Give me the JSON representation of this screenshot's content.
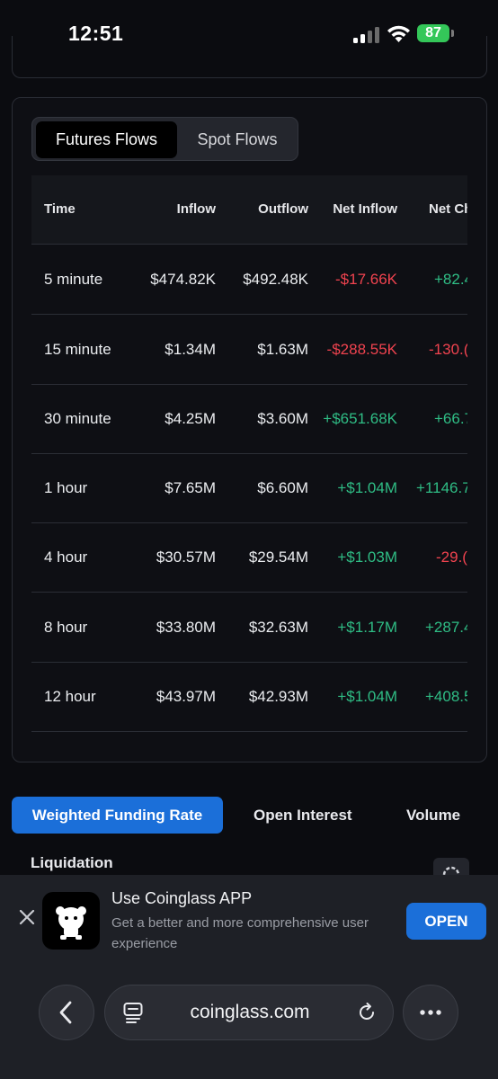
{
  "status_bar": {
    "time": "12:51",
    "battery": "87"
  },
  "flows": {
    "tabs": [
      "Futures Flows",
      "Spot Flows"
    ],
    "active_tab": "Futures Flows",
    "columns": [
      "Time",
      "Inflow",
      "Outflow",
      "Net Inflow",
      "Net Ch"
    ],
    "rows": [
      {
        "time": "5 minute",
        "inflow": "$474.82K",
        "outflow": "$492.48K",
        "net": "-$17.66K",
        "change": "+82.4"
      },
      {
        "time": "15 minute",
        "inflow": "$1.34M",
        "outflow": "$1.63M",
        "net": "-$288.55K",
        "change": "-130.("
      },
      {
        "time": "30 minute",
        "inflow": "$4.25M",
        "outflow": "$3.60M",
        "net": "+$651.68K",
        "change": "+66.7"
      },
      {
        "time": "1 hour",
        "inflow": "$7.65M",
        "outflow": "$6.60M",
        "net": "+$1.04M",
        "change": "+1146.7"
      },
      {
        "time": "4 hour",
        "inflow": "$30.57M",
        "outflow": "$29.54M",
        "net": "+$1.03M",
        "change": "-29.("
      },
      {
        "time": "8 hour",
        "inflow": "$33.80M",
        "outflow": "$32.63M",
        "net": "+$1.17M",
        "change": "+287.4"
      },
      {
        "time": "12 hour",
        "inflow": "$43.97M",
        "outflow": "$42.93M",
        "net": "+$1.04M",
        "change": "+408.5"
      }
    ]
  },
  "metric_tabs": [
    "Weighted Funding Rate",
    "Open Interest",
    "Volume"
  ],
  "liquidation_label": "Liquidation",
  "banner": {
    "title": "Use Coinglass APP",
    "subtitle": "Get a better and more comprehensive user experience",
    "open_label": "OPEN"
  },
  "browser": {
    "url": "coinglass.com"
  },
  "colors": {
    "accent": "#1b6fd9",
    "negative": "#f0434f",
    "positive": "#2fbd85"
  },
  "icons": [
    "signal-icon",
    "wifi-icon",
    "battery-icon",
    "close-icon",
    "coinglass-logo-icon",
    "back-icon",
    "reader-icon",
    "reload-icon",
    "more-icon",
    "settings-icon"
  ]
}
